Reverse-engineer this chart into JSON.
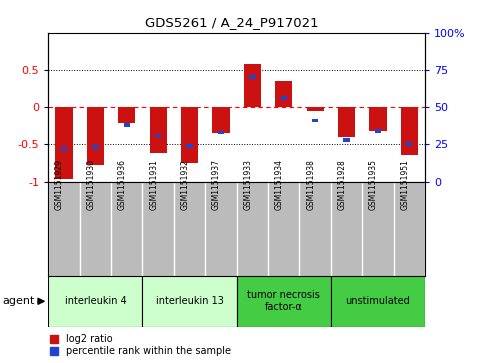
{
  "title": "GDS5261 / A_24_P917021",
  "samples": [
    "GSM1151929",
    "GSM1151930",
    "GSM1151936",
    "GSM1151931",
    "GSM1151932",
    "GSM1151937",
    "GSM1151933",
    "GSM1151934",
    "GSM1151938",
    "GSM1151928",
    "GSM1151935",
    "GSM1151951"
  ],
  "log2_ratio": [
    -0.97,
    -0.78,
    -0.22,
    -0.62,
    -0.75,
    -0.35,
    0.58,
    0.35,
    -0.05,
    -0.4,
    -0.32,
    -0.65
  ],
  "percentile": [
    22,
    23,
    38,
    31,
    24,
    33,
    70,
    56,
    41,
    28,
    34,
    25
  ],
  "bar_color": "#cc1111",
  "blue_color": "#2244cc",
  "ylim": [
    -1.0,
    1.0
  ],
  "yticks_left": [
    -1,
    -0.5,
    0,
    0.5
  ],
  "yticks_right": [
    0,
    25,
    50,
    75,
    100
  ],
  "groups": [
    {
      "label": "interleukin 4",
      "start": 0,
      "end": 3,
      "color": "#ccffcc"
    },
    {
      "label": "interleukin 13",
      "start": 3,
      "end": 6,
      "color": "#ccffcc"
    },
    {
      "label": "tumor necrosis\nfactor-α",
      "start": 6,
      "end": 9,
      "color": "#44cc44"
    },
    {
      "label": "unstimulated",
      "start": 9,
      "end": 12,
      "color": "#44cc44"
    }
  ],
  "legend_items": [
    {
      "label": "log2 ratio",
      "color": "#cc1111"
    },
    {
      "label": "percentile rank within the sample",
      "color": "#2244cc"
    }
  ],
  "agent_label": "agent",
  "sample_bg": "#bbbbbb",
  "background_color": "#ffffff"
}
